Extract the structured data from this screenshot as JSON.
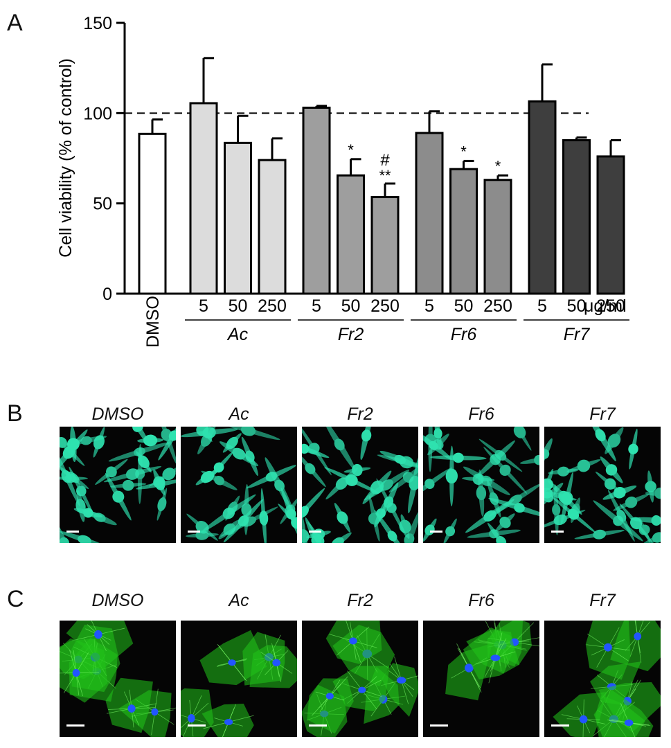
{
  "panels": {
    "a": {
      "letter": "A"
    },
    "b": {
      "letter": "B"
    },
    "c": {
      "letter": "C"
    }
  },
  "chart_data": {
    "type": "bar",
    "ylabel": "Cell viability (% of control)",
    "ylim": [
      0,
      150
    ],
    "yticks": [
      0,
      50,
      100,
      150
    ],
    "reference_line": 100,
    "unit_label": "μg/ml",
    "groups": [
      {
        "name": "",
        "bars": [
          {
            "label": "DMSO",
            "value": 88.5,
            "error": 8,
            "fill": "#ffffff",
            "sig": ""
          }
        ]
      },
      {
        "name": "Ac",
        "bars": [
          {
            "label": "5",
            "value": 105.5,
            "error": 25,
            "fill": "#dcdcdc",
            "sig": ""
          },
          {
            "label": "50",
            "value": 83.5,
            "error": 15,
            "fill": "#dcdcdc",
            "sig": ""
          },
          {
            "label": "250",
            "value": 74,
            "error": 12,
            "fill": "#dcdcdc",
            "sig": ""
          }
        ]
      },
      {
        "name": "Fr2",
        "bars": [
          {
            "label": "5",
            "value": 103,
            "error": 1,
            "fill": "#9e9e9e",
            "sig": ""
          },
          {
            "label": "50",
            "value": 65.5,
            "error": 9,
            "fill": "#9e9e9e",
            "sig": "*"
          },
          {
            "label": "250",
            "value": 53.5,
            "error": 7.5,
            "fill": "#9e9e9e",
            "sig": "**",
            "sig2": "#"
          }
        ]
      },
      {
        "name": "Fr6",
        "bars": [
          {
            "label": "5",
            "value": 89,
            "error": 12,
            "fill": "#8c8c8c",
            "sig": ""
          },
          {
            "label": "50",
            "value": 69,
            "error": 4.5,
            "fill": "#8c8c8c",
            "sig": "*"
          },
          {
            "label": "250",
            "value": 63,
            "error": 2.5,
            "fill": "#8c8c8c",
            "sig": "*"
          }
        ]
      },
      {
        "name": "Fr7",
        "bars": [
          {
            "label": "5",
            "value": 106.5,
            "error": 20.5,
            "fill": "#3e3e3e",
            "sig": ""
          },
          {
            "label": "50",
            "value": 85,
            "error": 1.5,
            "fill": "#3e3e3e",
            "sig": ""
          },
          {
            "label": "250",
            "value": 76,
            "error": 9,
            "fill": "#3e3e3e",
            "sig": ""
          }
        ]
      }
    ]
  },
  "micrographs_b": {
    "labels": [
      "DMSO",
      "Ac",
      "Fr2",
      "Fr6",
      "Fr7"
    ],
    "stain_color": "#2fe3b0"
  },
  "micrographs_c": {
    "labels": [
      "DMSO",
      "Ac",
      "Fr2",
      "Fr6",
      "Fr7"
    ],
    "stain_color": "#22c41a",
    "nucleus_color": "#2255ff"
  }
}
